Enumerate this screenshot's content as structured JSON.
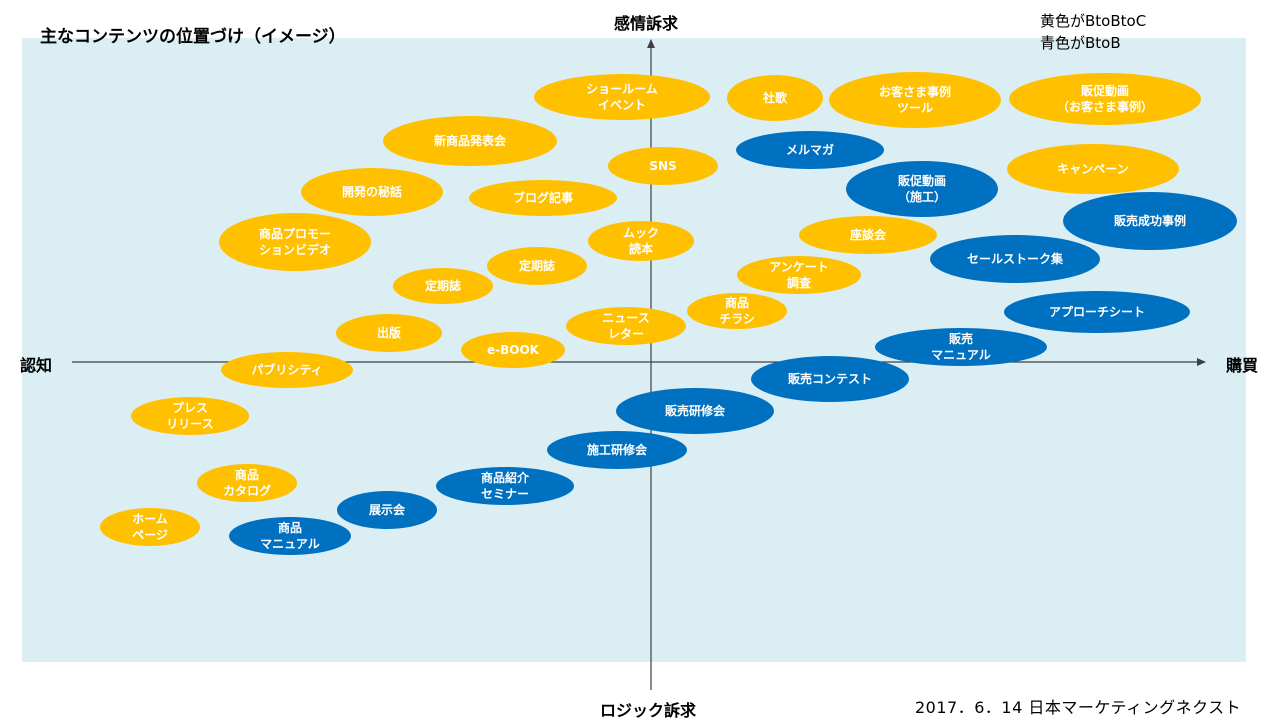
{
  "title": "主なコンテンツの位置づけ（イメージ）",
  "legend": [
    "黄色がBtoBtoC",
    "青色がBtoB"
  ],
  "axes": {
    "top": "感情訴求",
    "bottom": "ロジック訴求",
    "left": "認知",
    "right": "購買"
  },
  "footer": "2017．6．14 日本マーケティングネクスト",
  "colors": {
    "yellow": "#ffc000",
    "blue": "#0070c0",
    "background": "#daeef3"
  },
  "bubbles": [
    {
      "id": "b01",
      "label": "ショールーム\nイベント",
      "color": "yellow"
    },
    {
      "id": "b02",
      "label": "社歌",
      "color": "yellow"
    },
    {
      "id": "b03",
      "label": "お客さま事例\nツール",
      "color": "yellow"
    },
    {
      "id": "b04",
      "label": "販促動画\n（お客さま事例）",
      "color": "yellow"
    },
    {
      "id": "b05",
      "label": "新商品発表会",
      "color": "yellow"
    },
    {
      "id": "b06",
      "label": "SNS",
      "color": "yellow"
    },
    {
      "id": "b07",
      "label": "メルマガ",
      "color": "blue"
    },
    {
      "id": "b08",
      "label": "キャンペーン",
      "color": "yellow"
    },
    {
      "id": "b09",
      "label": "開発の秘話",
      "color": "yellow"
    },
    {
      "id": "b10",
      "label": "ブログ記事",
      "color": "yellow"
    },
    {
      "id": "b11",
      "label": "販促動画\n（施工）",
      "color": "blue"
    },
    {
      "id": "b12",
      "label": "販売成功事例",
      "color": "blue"
    },
    {
      "id": "b13",
      "label": "商品プロモー\nションビデオ",
      "color": "yellow"
    },
    {
      "id": "b14",
      "label": "ムック\n読本",
      "color": "yellow"
    },
    {
      "id": "b15",
      "label": "座談会",
      "color": "yellow"
    },
    {
      "id": "b16",
      "label": "セールストーク集",
      "color": "blue"
    },
    {
      "id": "b17",
      "label": "定期誌",
      "color": "yellow"
    },
    {
      "id": "b18",
      "label": "定期誌",
      "color": "yellow"
    },
    {
      "id": "b19",
      "label": "アンケート\n調査",
      "color": "yellow"
    },
    {
      "id": "b20",
      "label": "商品\nチラシ",
      "color": "yellow"
    },
    {
      "id": "b21",
      "label": "アプローチシート",
      "color": "blue"
    },
    {
      "id": "b22",
      "label": "出版",
      "color": "yellow"
    },
    {
      "id": "b23",
      "label": "ニュース\nレター",
      "color": "yellow"
    },
    {
      "id": "b24",
      "label": "e-BOOK",
      "color": "yellow"
    },
    {
      "id": "b25",
      "label": "販売\nマニュアル",
      "color": "blue"
    },
    {
      "id": "b26",
      "label": "パブリシティ",
      "color": "yellow"
    },
    {
      "id": "b27",
      "label": "販売コンテスト",
      "color": "blue"
    },
    {
      "id": "b28",
      "label": "プレス\nリリース",
      "color": "yellow"
    },
    {
      "id": "b29",
      "label": "販売研修会",
      "color": "blue"
    },
    {
      "id": "b30",
      "label": "施工研修会",
      "color": "blue"
    },
    {
      "id": "b31",
      "label": "商品\nカタログ",
      "color": "yellow"
    },
    {
      "id": "b32",
      "label": "商品紹介\nセミナー",
      "color": "blue"
    },
    {
      "id": "b33",
      "label": "展示会",
      "color": "blue"
    },
    {
      "id": "b34",
      "label": "ホーム\nページ",
      "color": "yellow"
    },
    {
      "id": "b35",
      "label": "商品\nマニュアル",
      "color": "blue"
    }
  ]
}
